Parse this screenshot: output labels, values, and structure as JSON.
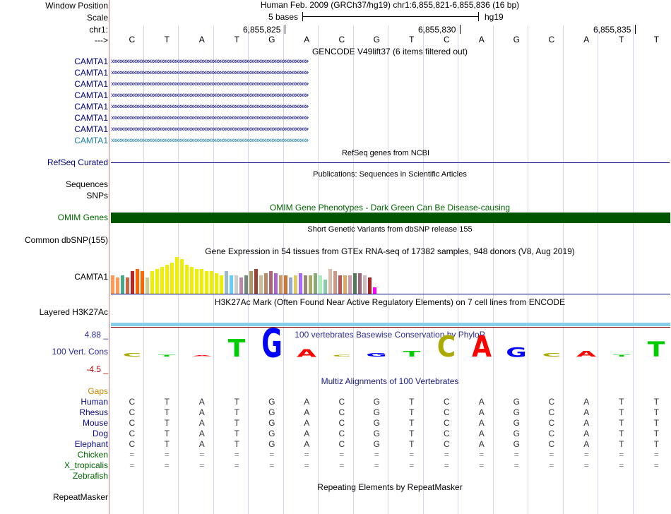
{
  "header": {
    "window_position_label": "Window Position",
    "scale_label": "Scale",
    "chrom_label": "chr1:",
    "strand_label": "--->",
    "assembly_text": "Human Feb. 2009 (GRCh37/hg19)   chr1:6,855,821-6,855,836 (16 bp)",
    "scale_text": "5 bases",
    "scale_db": "hg19",
    "positions": [
      "6,855,825",
      "6,855,830",
      "6,855,835"
    ]
  },
  "bases": [
    "C",
    "T",
    "A",
    "T",
    "G",
    "A",
    "C",
    "G",
    "T",
    "C",
    "A",
    "G",
    "C",
    "A",
    "T",
    "T"
  ],
  "gencode": {
    "title": "GENCODE V49lift37 (6 items filtered out)",
    "items": [
      "CAMTA1",
      "CAMTA1",
      "CAMTA1",
      "CAMTA1",
      "CAMTA1",
      "CAMTA1",
      "CAMTA1",
      "CAMTA1"
    ]
  },
  "refseq": {
    "title": "RefSeq genes from NCBI",
    "label": "RefSeq Curated"
  },
  "publications": {
    "title": "Publications: Sequences in Scientific Articles",
    "label1": "Sequences",
    "label2": "SNPs"
  },
  "omim": {
    "title": "OMIM Gene Phenotypes - Dark Green Can Be Disease-causing",
    "label": "OMIM Genes",
    "color": "#005500"
  },
  "dbsnp": {
    "title": "Short Genetic Variants from dbSNP release 155",
    "label": "Common dbSNP(155)"
  },
  "gtex": {
    "title": "Gene Expression in 54 tissues from GTEx RNA-seq of 17382 samples, 948 donors (V8, Aug 2019)",
    "label": "CAMTA1",
    "bar_levels": [
      0.45,
      0.4,
      0.45,
      0.4,
      0.55,
      0.6,
      0.55,
      0.4,
      0.55,
      0.6,
      0.65,
      0.7,
      0.75,
      0.9,
      0.85,
      0.7,
      0.65,
      0.6,
      0.6,
      0.55,
      0.55,
      0.5,
      0.45,
      0.55,
      0.45,
      0.45,
      0.4,
      0.45,
      0.55,
      0.6,
      0.45,
      0.5,
      0.55,
      0.5,
      0.45,
      0.45,
      0.4,
      0.45,
      0.5,
      0.45,
      0.45,
      0.5,
      0.45,
      0.35,
      0.6,
      0.55,
      0.45,
      0.45,
      0.45,
      0.5,
      0.5,
      0.45,
      0.4,
      0.15
    ],
    "bar_colors": [
      "#ff9955",
      "#ff9955",
      "#44aa88",
      "#cc6644",
      "#bb2222",
      "#ff6600",
      "#ff6600",
      "#cccc99",
      "#eeee00",
      "#eeee00",
      "#eeee00",
      "#eeee00",
      "#eeee00",
      "#eeee00",
      "#eeee00",
      "#eeee00",
      "#eeee00",
      "#eeee00",
      "#eeee00",
      "#eeee00",
      "#eeee00",
      "#eeee00",
      "#eeee00",
      "#99bbcc",
      "#66ccff",
      "#cccccc",
      "#bb88aa",
      "#778877",
      "#aa9966",
      "#994433",
      "#ccbb99",
      "#bb8866",
      "#aa6677",
      "#aa66cc",
      "#cc9966",
      "#cc7733",
      "#99aacc",
      "#ddcc66",
      "#aa66ff",
      "#998877",
      "#aaaa66",
      "#88aa77",
      "#aaeebb",
      "#88ccaa",
      "#ddbbaa",
      "#cc9988",
      "#bb5555",
      "#ddaa66",
      "#cc99aa",
      "#557755",
      "#996677",
      "#ccbbbb",
      "#aa2222",
      "#ff00ff"
    ]
  },
  "h3k27ac": {
    "title": "H3K27Ac Mark (Often Found Near Active Regulatory Elements) on 7 cell lines from ENCODE",
    "label": "Layered H3K27Ac"
  },
  "phylop": {
    "title": "100 vertebrates Basewise Conservation by PhyloP",
    "label": "100 Vert. Cons",
    "max": "4.88 _",
    "min": "-4.5 _",
    "scores": [
      0.1,
      0.05,
      0,
      0.45,
      0.75,
      0.2,
      0.05,
      0.1,
      0.15,
      0.55,
      0.55,
      0.25,
      0.1,
      0.15,
      0.05,
      0.4
    ],
    "colors": {
      "A": "#ff0000",
      "C": "#aaaa00",
      "G": "#0000ff",
      "T": "#00cc00"
    }
  },
  "multiz": {
    "title": "Multiz Alignments of 100 Vertebrates",
    "gaps_label": "Gaps",
    "species": [
      {
        "name": "Human",
        "row": [
          "C",
          "T",
          "A",
          "T",
          "G",
          "A",
          "C",
          "G",
          "T",
          "C",
          "A",
          "G",
          "C",
          "A",
          "T",
          "T"
        ]
      },
      {
        "name": "Rhesus",
        "row": [
          "C",
          "T",
          "A",
          "T",
          "G",
          "A",
          "C",
          "G",
          "T",
          "C",
          "A",
          "G",
          "C",
          "A",
          "T",
          "T"
        ]
      },
      {
        "name": "Mouse",
        "row": [
          "C",
          "T",
          "A",
          "T",
          "G",
          "A",
          "C",
          "G",
          "T",
          "C",
          "A",
          "G",
          "C",
          "A",
          "T",
          "T"
        ]
      },
      {
        "name": "Dog",
        "row": [
          "C",
          "T",
          "A",
          "T",
          "G",
          "A",
          "C",
          "G",
          "T",
          "C",
          "A",
          "G",
          "C",
          "A",
          "T",
          "T"
        ]
      },
      {
        "name": "Elephant",
        "row": [
          "C",
          "T",
          "A",
          "T",
          "G",
          "A",
          "C",
          "G",
          "T",
          "C",
          "A",
          "G",
          "C",
          "A",
          "T",
          "T"
        ]
      },
      {
        "name": "Chicken",
        "row": [
          "=",
          "=",
          "=",
          "=",
          "=",
          "=",
          "=",
          "=",
          "=",
          "=",
          "=",
          "=",
          "=",
          "=",
          "=",
          "="
        ]
      },
      {
        "name": "X_tropicalis",
        "row": [
          "=",
          "=",
          "=",
          "=",
          "=",
          "=",
          "=",
          "=",
          "=",
          "=",
          "=",
          "=",
          "=",
          "=",
          "=",
          "="
        ]
      },
      {
        "name": "Zebrafish",
        "row": []
      }
    ]
  },
  "repeatmasker": {
    "title": "Repeating Elements by RepeatMasker",
    "label": "RepeatMasker"
  },
  "colors": {
    "track_blue": "#000080",
    "mammal_blue": "#0a0a8a",
    "nonmammal_green": "#006600",
    "gaps_orange": "#cc8800",
    "h3k_blue": "#87ceeb",
    "gencode_light": "#1a7fa0"
  }
}
